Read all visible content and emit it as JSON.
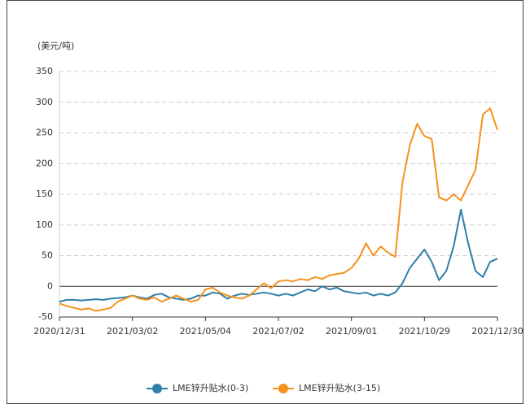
{
  "chart_data": {
    "type": "line",
    "y_label": "(美元/吨)",
    "categories": [
      "2020/12/31",
      null,
      null,
      null,
      null,
      null,
      null,
      null,
      null,
      null,
      "2021/03/02",
      null,
      null,
      null,
      null,
      null,
      null,
      null,
      null,
      null,
      "2021/05/04",
      null,
      null,
      null,
      null,
      null,
      null,
      null,
      null,
      null,
      "2021/07/02",
      null,
      null,
      null,
      null,
      null,
      null,
      null,
      null,
      null,
      "2021/09/01",
      null,
      null,
      null,
      null,
      null,
      null,
      null,
      null,
      null,
      "2021/10/29",
      null,
      null,
      null,
      null,
      null,
      null,
      null,
      null,
      null,
      "2021/12/30"
    ],
    "series": [
      {
        "name": "LME锌升贴水(0-3)",
        "color": "#2e7fa8",
        "values": [
          -25,
          -22,
          -22,
          -23,
          -22,
          -21,
          -22,
          -20,
          -19,
          -18,
          -15,
          -18,
          -20,
          -14,
          -12,
          -18,
          -20,
          -22,
          -20,
          -15,
          -15,
          -10,
          -12,
          -20,
          -15,
          -12,
          -14,
          -12,
          -10,
          -12,
          -15,
          -12,
          -15,
          -10,
          -5,
          -8,
          0,
          -5,
          -2,
          -8,
          -10,
          -12,
          -10,
          -15,
          -12,
          -15,
          -10,
          5,
          30,
          45,
          60,
          40,
          10,
          25,
          65,
          125,
          70,
          25,
          15,
          40,
          45
        ]
      },
      {
        "name": "LME锌升贴水(3-15)",
        "color": "#f5921e",
        "values": [
          -28,
          -32,
          -35,
          -38,
          -36,
          -40,
          -38,
          -35,
          -25,
          -20,
          -15,
          -20,
          -22,
          -18,
          -25,
          -20,
          -15,
          -20,
          -25,
          -22,
          -5,
          -2,
          -10,
          -15,
          -18,
          -20,
          -15,
          -5,
          5,
          -3,
          8,
          10,
          8,
          12,
          10,
          15,
          12,
          18,
          20,
          22,
          30,
          45,
          70,
          50,
          65,
          55,
          48,
          170,
          230,
          265,
          245,
          240,
          145,
          140,
          150,
          140,
          165,
          190,
          280,
          290,
          255
        ]
      }
    ],
    "ylim": [
      -50,
      350
    ],
    "yticks": [
      -50,
      0,
      50,
      100,
      150,
      200,
      250,
      300,
      350
    ],
    "grid": true,
    "legend": "bottom"
  }
}
